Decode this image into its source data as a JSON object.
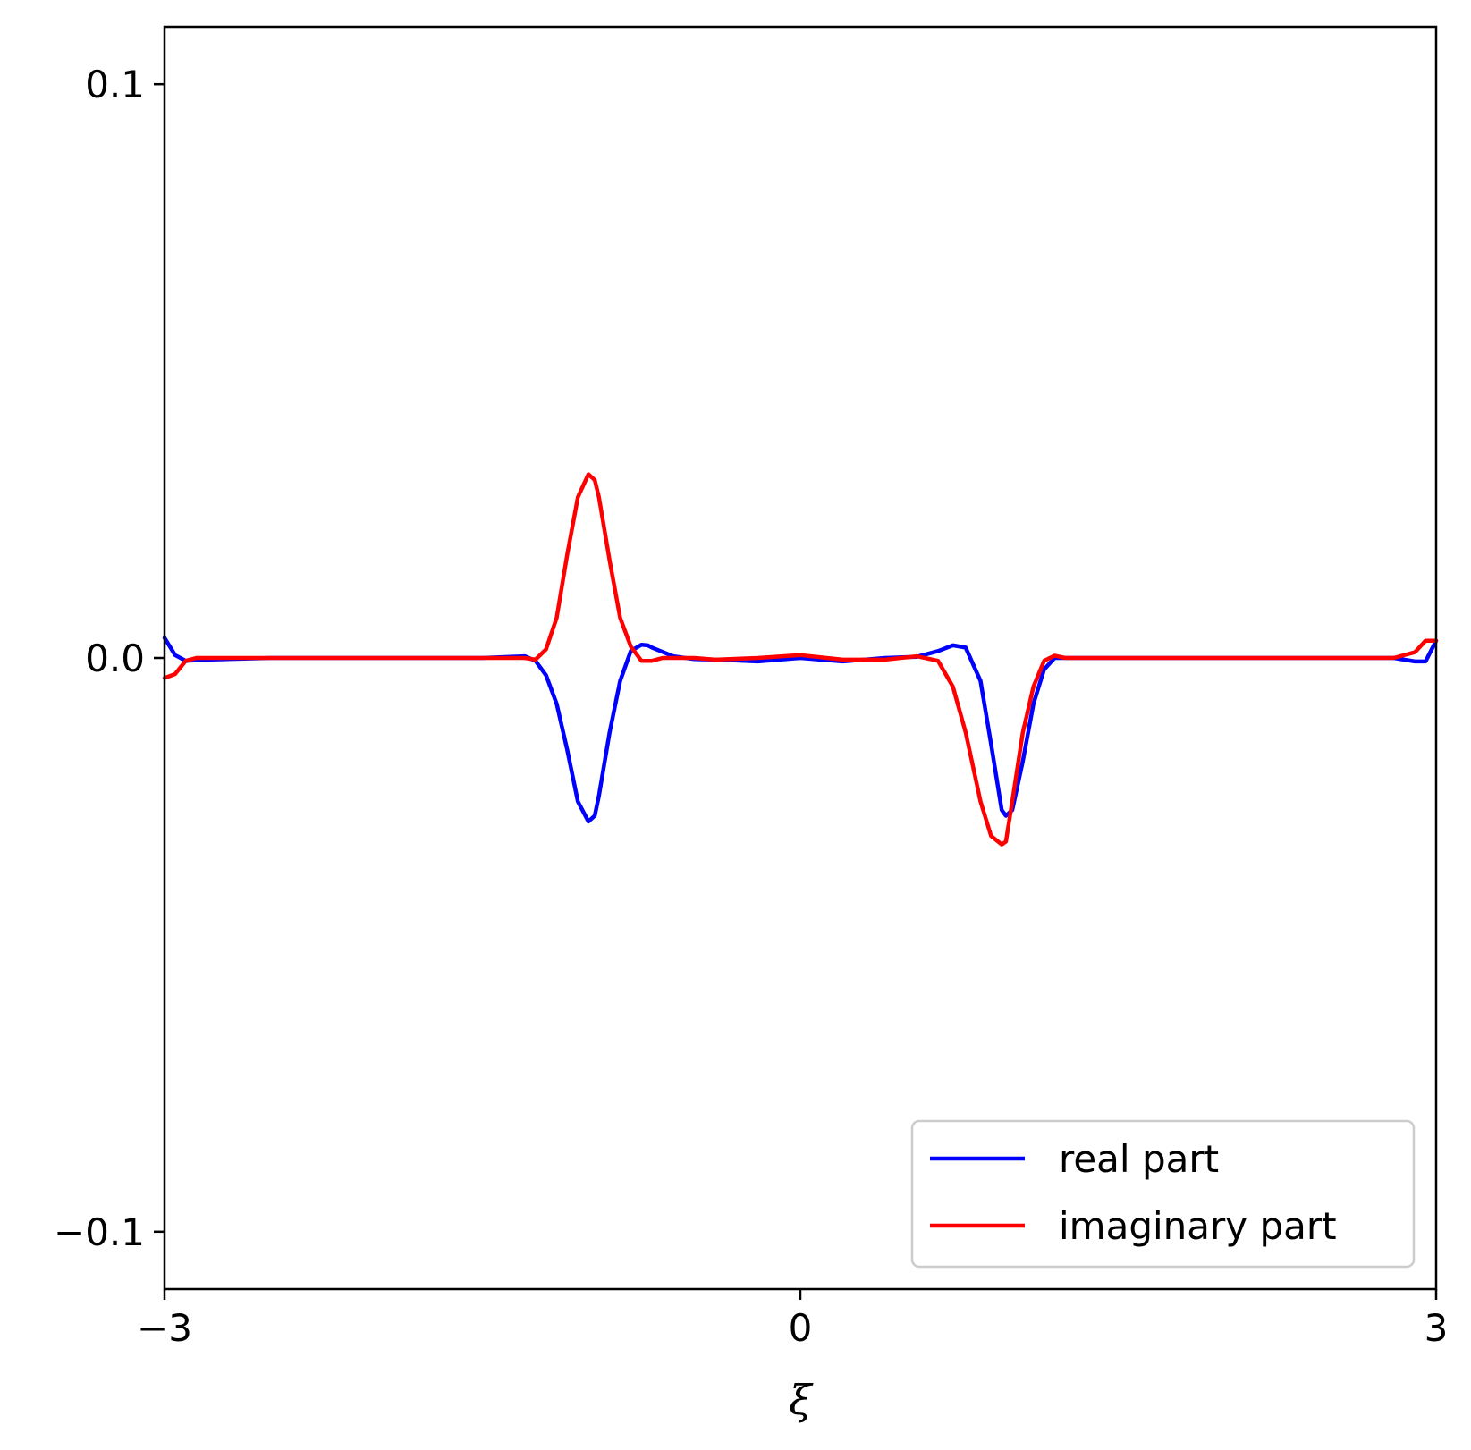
{
  "chart_data": {
    "type": "line",
    "title": "",
    "xlabel": "ξ",
    "ylabel": "",
    "xlim": [
      -3,
      3
    ],
    "ylim": [
      -0.11,
      0.11
    ],
    "xticks": [
      -3,
      0,
      3
    ],
    "xtick_labels": [
      "−3",
      "0",
      "3"
    ],
    "yticks": [
      0.1,
      0.0,
      -0.1
    ],
    "ytick_labels": [
      "0.1",
      "0.0",
      "−0.1"
    ],
    "grid": false,
    "legend_position": "bottom-right",
    "series": [
      {
        "name": "real part",
        "color": "#0000ff",
        "x": [
          -3.0,
          -2.95,
          -2.9,
          -2.8,
          -2.5,
          -2.0,
          -1.5,
          -1.3,
          -1.25,
          -1.2,
          -1.15,
          -1.1,
          -1.05,
          -1.0,
          -0.97,
          -0.95,
          -0.9,
          -0.85,
          -0.8,
          -0.75,
          -0.72,
          -0.7,
          -0.6,
          -0.5,
          -0.4,
          -0.2,
          0.0,
          0.2,
          0.4,
          0.55,
          0.65,
          0.72,
          0.78,
          0.85,
          0.9,
          0.95,
          0.97,
          1.0,
          1.05,
          1.1,
          1.15,
          1.2,
          1.25,
          1.3,
          1.4,
          1.5,
          2.0,
          2.5,
          2.8,
          2.9,
          2.95,
          3.0
        ],
        "y": [
          0.0035,
          0.0005,
          -0.0005,
          -0.0003,
          0.0,
          0.0,
          0.0,
          0.0003,
          -0.0005,
          -0.003,
          -0.008,
          -0.016,
          -0.025,
          -0.0285,
          -0.0275,
          -0.024,
          -0.013,
          -0.004,
          0.0012,
          0.0023,
          0.0022,
          0.0018,
          0.0003,
          -0.0002,
          -0.0003,
          -0.0006,
          0.0,
          -0.0006,
          0.0,
          0.0002,
          0.0012,
          0.0022,
          0.0018,
          -0.004,
          -0.015,
          -0.0265,
          -0.0275,
          -0.0265,
          -0.018,
          -0.008,
          -0.002,
          0.0,
          0.0,
          0.0,
          0.0,
          0.0,
          0.0,
          0.0,
          0.0,
          -0.0006,
          -0.0006,
          0.003
        ]
      },
      {
        "name": "imaginary part",
        "color": "#ff0000",
        "x": [
          -3.0,
          -2.95,
          -2.9,
          -2.85,
          -2.8,
          -2.5,
          -2.0,
          -1.5,
          -1.3,
          -1.25,
          -1.2,
          -1.15,
          -1.1,
          -1.05,
          -1.0,
          -0.97,
          -0.95,
          -0.9,
          -0.85,
          -0.8,
          -0.75,
          -0.7,
          -0.65,
          -0.6,
          -0.5,
          -0.4,
          -0.2,
          0.0,
          0.2,
          0.4,
          0.55,
          0.65,
          0.72,
          0.78,
          0.85,
          0.9,
          0.95,
          0.97,
          1.0,
          1.05,
          1.1,
          1.15,
          1.2,
          1.25,
          1.3,
          1.4,
          1.5,
          2.0,
          2.5,
          2.8,
          2.9,
          2.95,
          3.0
        ],
        "y": [
          -0.0035,
          -0.0028,
          -0.0005,
          0.0,
          0.0,
          0.0,
          0.0,
          0.0,
          0.0,
          -0.0003,
          0.0015,
          0.007,
          0.018,
          0.028,
          0.032,
          0.031,
          0.028,
          0.017,
          0.007,
          0.002,
          -0.0005,
          -0.0005,
          0.0,
          0.0,
          0.0,
          -0.0003,
          0.0,
          0.0005,
          -0.0003,
          -0.0003,
          0.0003,
          -0.0005,
          -0.005,
          -0.013,
          -0.025,
          -0.031,
          -0.0325,
          -0.032,
          -0.025,
          -0.013,
          -0.005,
          -0.0005,
          0.0004,
          0.0,
          0.0,
          0.0,
          0.0,
          0.0,
          0.0,
          0.0,
          0.001,
          0.003,
          0.003
        ]
      }
    ]
  }
}
